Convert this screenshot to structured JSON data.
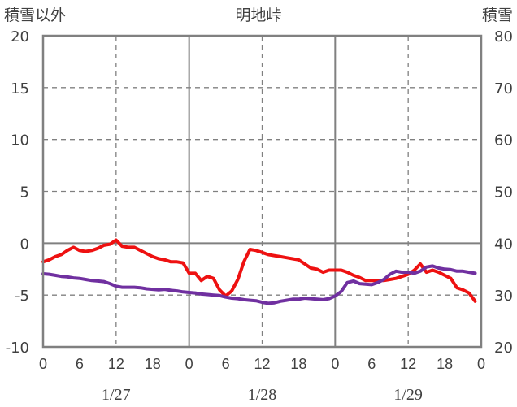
{
  "chart_data": {
    "type": "line",
    "title": "明地峠",
    "y_left_label": "積雪以外",
    "y_right_label": "積雪",
    "y_left": {
      "min": -10,
      "max": 20,
      "ticks": [
        "20",
        "15",
        "10",
        "5",
        "0",
        "-5",
        "-10"
      ]
    },
    "y_right": {
      "min": 20,
      "max": 80,
      "ticks": [
        "80",
        "70",
        "60",
        "50",
        "40",
        "30",
        "20"
      ]
    },
    "x_hours": {
      "min": 0,
      "max": 72
    },
    "x_tick_labels": [
      "0",
      "6",
      "12",
      "18",
      "0",
      "6",
      "12",
      "18",
      "0",
      "6",
      "12",
      "18",
      "0"
    ],
    "date_labels": [
      "1/27",
      "1/28",
      "1/29"
    ],
    "grid": "dashed at hour 12 and at 0, 10, 20 (left axis); solid at day boundaries and left-axis 0",
    "colors": {
      "red_series": "#ee1111",
      "purple_series": "#7030a0",
      "frame": "#808080",
      "grid": "#808080"
    },
    "series": [
      {
        "color": "#ee1111",
        "axis": "left",
        "x": [
          0,
          1,
          2,
          3,
          4,
          5,
          6,
          7,
          8,
          9,
          10,
          11,
          12,
          13,
          14,
          15,
          16,
          17,
          18,
          19,
          20,
          21,
          22,
          23,
          24,
          25,
          26,
          27,
          28,
          29,
          30,
          31,
          32,
          33,
          34,
          35,
          36,
          37,
          38,
          39,
          40,
          41,
          42,
          43,
          44,
          45,
          46,
          47,
          48,
          49,
          50,
          51,
          52,
          53,
          54,
          55,
          56,
          57,
          58,
          59,
          60,
          61,
          62,
          63,
          64,
          65,
          66,
          67,
          68,
          69,
          70,
          71
        ],
        "y": [
          -1.8,
          -1.6,
          -1.3,
          -1.1,
          -0.7,
          -0.4,
          -0.7,
          -0.8,
          -0.7,
          -0.5,
          -0.2,
          -0.1,
          0.3,
          -0.3,
          -0.4,
          -0.4,
          -0.7,
          -1.0,
          -1.3,
          -1.5,
          -1.6,
          -1.8,
          -1.8,
          -1.9,
          -2.9,
          -2.9,
          -3.6,
          -3.2,
          -3.4,
          -4.5,
          -5.1,
          -4.6,
          -3.5,
          -1.8,
          -0.6,
          -0.7,
          -0.9,
          -1.1,
          -1.2,
          -1.3,
          -1.4,
          -1.5,
          -1.6,
          -2.0,
          -2.4,
          -2.5,
          -2.8,
          -2.6,
          -2.6,
          -2.6,
          -2.8,
          -3.1,
          -3.3,
          -3.6,
          -3.6,
          -3.6,
          -3.6,
          -3.5,
          -3.4,
          -3.2,
          -3.0,
          -2.6,
          -2.0,
          -2.8,
          -2.6,
          -2.8,
          -3.1,
          -3.4,
          -4.3,
          -4.5,
          -4.8,
          -5.6
        ]
      },
      {
        "color": "#7030a0",
        "axis": "right",
        "x": [
          0,
          1,
          2,
          3,
          4,
          5,
          6,
          7,
          8,
          9,
          10,
          11,
          12,
          13,
          14,
          15,
          16,
          17,
          18,
          19,
          20,
          21,
          22,
          23,
          24,
          25,
          26,
          27,
          28,
          29,
          30,
          31,
          32,
          33,
          34,
          35,
          36,
          37,
          38,
          39,
          40,
          41,
          42,
          43,
          44,
          45,
          46,
          47,
          48,
          49,
          50,
          51,
          52,
          53,
          54,
          55,
          56,
          57,
          58,
          59,
          60,
          61,
          62,
          63,
          64,
          65,
          66,
          67,
          68,
          69,
          70,
          71
        ],
        "y": [
          34.1,
          34.0,
          33.8,
          33.6,
          33.5,
          33.3,
          33.2,
          33.0,
          32.8,
          32.7,
          32.6,
          32.2,
          31.7,
          31.5,
          31.5,
          31.5,
          31.4,
          31.2,
          31.1,
          31.0,
          31.1,
          30.9,
          30.8,
          30.6,
          30.5,
          30.4,
          30.2,
          30.1,
          30.0,
          29.9,
          29.6,
          29.4,
          29.3,
          29.1,
          29.0,
          28.9,
          28.6,
          28.4,
          28.5,
          28.8,
          29.0,
          29.2,
          29.2,
          29.4,
          29.3,
          29.2,
          29.1,
          29.3,
          29.8,
          30.7,
          32.4,
          32.7,
          32.2,
          32.1,
          32.0,
          32.4,
          33.0,
          34.0,
          34.6,
          34.4,
          34.4,
          34.2,
          34.6,
          35.4,
          35.6,
          35.2,
          35.0,
          34.9,
          34.6,
          34.6,
          34.4,
          34.2
        ]
      }
    ]
  }
}
